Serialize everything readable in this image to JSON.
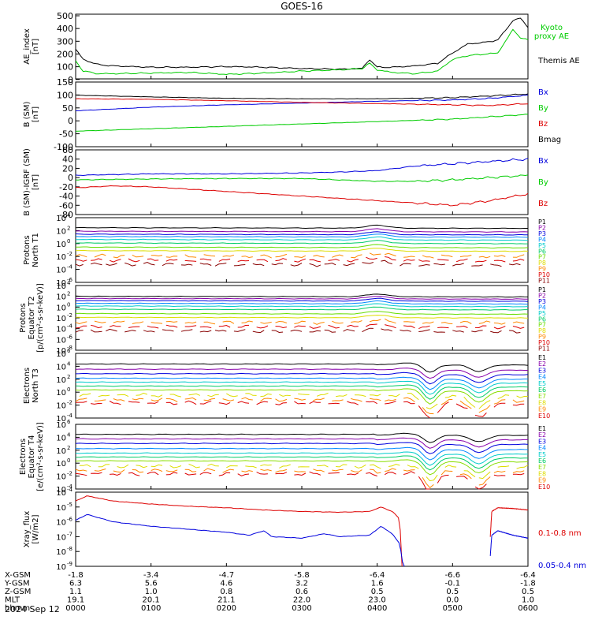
{
  "title": "GOES-16",
  "colors": {
    "black": "#000000",
    "green": "#00cc00",
    "blue": "#0000dd",
    "red": "#dd0000",
    "yellow": "#dddd00",
    "orange": "#ff8800",
    "proton_bands": [
      "#000000",
      "#8800aa",
      "#0000dd",
      "#0088ff",
      "#00cccc",
      "#00cc66",
      "#66dd00",
      "#dddd00",
      "#ff8800",
      "#dd0000",
      "#880000"
    ],
    "electron_bands": [
      "#000000",
      "#8800aa",
      "#0000dd",
      "#0088ff",
      "#00cccc",
      "#00cc66",
      "#88dd00",
      "#dddd00",
      "#ff8800",
      "#dd0000"
    ]
  },
  "chart_data": [
    {
      "id": "ae",
      "type": "line",
      "ylabel": [
        "AE_index",
        "[nT]"
      ],
      "ylim": [
        0,
        500
      ],
      "yticks": [
        "500",
        "400",
        "300",
        "200",
        "100",
        "0"
      ],
      "legend": [
        {
          "text": "Kyoto",
          "color": "#00cc00"
        },
        {
          "text": "proxy AE",
          "color": "#00cc00"
        },
        {
          "text": "Themis AE",
          "color": "#000000"
        }
      ],
      "series": [
        {
          "color": "#000000",
          "x": [
            0,
            0.1,
            0.3,
            0.5,
            1.0,
            1.5,
            2.0,
            2.5,
            3.0,
            3.5,
            3.8,
            3.9,
            4.0,
            4.2,
            4.5,
            4.8,
            5.0,
            5.2,
            5.4,
            5.6,
            5.8,
            5.9,
            6.0
          ],
          "values": [
            230,
            150,
            110,
            100,
            90,
            90,
            95,
            90,
            80,
            75,
            80,
            150,
            90,
            90,
            100,
            120,
            200,
            270,
            280,
            300,
            450,
            470,
            400
          ]
        },
        {
          "color": "#00cc00",
          "x": [
            0,
            0.1,
            0.3,
            0.5,
            1.0,
            1.5,
            2.0,
            2.5,
            3.0,
            3.5,
            3.8,
            3.9,
            4.0,
            4.2,
            4.5,
            4.8,
            5.0,
            5.2,
            5.4,
            5.6,
            5.8,
            5.9,
            6.0
          ],
          "values": [
            140,
            60,
            40,
            40,
            45,
            50,
            35,
            45,
            60,
            70,
            80,
            120,
            70,
            50,
            40,
            60,
            150,
            180,
            190,
            200,
            380,
            320,
            300
          ]
        }
      ]
    },
    {
      "id": "bsm",
      "type": "line",
      "ylabel": [
        "B (SM)",
        "[nT]"
      ],
      "ylim": [
        -120,
        150
      ],
      "yticks": [
        "150",
        "100",
        "50",
        "0",
        "-50",
        "-100"
      ],
      "legend": [
        {
          "text": "Bx",
          "color": "#0000dd"
        },
        {
          "text": "By",
          "color": "#00cc00"
        },
        {
          "text": "Bz",
          "color": "#dd0000"
        },
        {
          "text": "Bmag",
          "color": "#000000"
        }
      ],
      "series": [
        {
          "color": "#000000",
          "x": [
            0,
            1,
            2,
            3,
            4,
            5,
            5.5,
            6
          ],
          "values": [
            95,
            88,
            82,
            80,
            80,
            85,
            92,
            100
          ]
        },
        {
          "color": "#0000dd",
          "x": [
            0,
            1,
            2,
            3,
            4,
            5,
            5.5,
            6
          ],
          "values": [
            30,
            45,
            55,
            62,
            70,
            75,
            82,
            95
          ]
        },
        {
          "color": "#dd0000",
          "x": [
            0,
            1,
            2,
            3,
            4,
            5,
            5.5,
            6
          ],
          "values": [
            80,
            78,
            72,
            65,
            60,
            55,
            52,
            60
          ]
        },
        {
          "color": "#00cc00",
          "x": [
            0,
            1,
            2,
            3,
            4,
            5,
            5.5,
            6
          ],
          "values": [
            -55,
            -45,
            -35,
            -25,
            -15,
            -5,
            5,
            15
          ]
        }
      ]
    },
    {
      "id": "bdiff",
      "type": "line",
      "ylabel": [
        "B (SM)-IGRF (SM)",
        "[nT]"
      ],
      "ylim": [
        -80,
        60
      ],
      "yticks": [
        "60",
        "40",
        "20",
        "0",
        "-20",
        "-40",
        "-60",
        "-80"
      ],
      "legend": [
        {
          "text": "Bx",
          "color": "#0000dd"
        },
        {
          "text": "By",
          "color": "#00cc00"
        },
        {
          "text": "Bz",
          "color": "#dd0000"
        }
      ],
      "series": [
        {
          "color": "#0000dd",
          "x": [
            0,
            1,
            2,
            3,
            3.5,
            4,
            4.5,
            5,
            5.5,
            6
          ],
          "values": [
            5,
            8,
            8,
            10,
            12,
            15,
            25,
            30,
            35,
            40
          ]
        },
        {
          "color": "#00cc00",
          "x": [
            0,
            1,
            2,
            3,
            3.5,
            4,
            4.5,
            5,
            5.5,
            6
          ],
          "values": [
            -5,
            -3,
            -2,
            -2,
            -5,
            -8,
            -8,
            -5,
            0,
            5
          ]
        },
        {
          "color": "#dd0000",
          "x": [
            0,
            0.5,
            1,
            2,
            3,
            3.5,
            4,
            4.5,
            5,
            5.5,
            6
          ],
          "values": [
            -22,
            -18,
            -20,
            -30,
            -40,
            -45,
            -50,
            -55,
            -60,
            -50,
            -35
          ]
        }
      ]
    },
    {
      "id": "pn",
      "type": "line",
      "scale": "log",
      "ylabel": [
        "Protons",
        "North T1"
      ],
      "ylim": [
        -7,
        4
      ],
      "yticks": [
        {
          "base": "10",
          "exp": "4"
        },
        {
          "base": "10",
          "exp": "2"
        },
        {
          "base": "10",
          "exp": "0"
        },
        {
          "base": "10",
          "exp": "-2"
        },
        {
          "base": "10",
          "exp": "-4"
        },
        {
          "base": "10",
          "exp": "-6"
        }
      ],
      "legend": [
        "P1",
        "P2",
        "P3",
        "P4",
        "P5",
        "P6",
        "P7",
        "P8",
        "P9",
        "P10",
        "P11"
      ],
      "levels": [
        2.3,
        1.7,
        1.2,
        0.8,
        0.3,
        -0.3,
        -1.0,
        -1.6,
        -2.5,
        -3.2,
        -3.9
      ]
    },
    {
      "id": "pe",
      "type": "line",
      "scale": "log",
      "ylabel": [
        "Protons",
        "Equator T2",
        "[p/(cm²-s-sr-keV)]"
      ],
      "ylim": [
        -8,
        4
      ],
      "yticks": [
        {
          "base": "10",
          "exp": "4"
        },
        {
          "base": "10",
          "exp": "2"
        },
        {
          "base": "10",
          "exp": "0"
        },
        {
          "base": "10",
          "exp": "-2"
        },
        {
          "base": "10",
          "exp": "-4"
        },
        {
          "base": "10",
          "exp": "-6"
        },
        {
          "base": "10",
          "exp": "-8"
        }
      ],
      "legend": [
        "P1",
        "P2",
        "P3",
        "P4",
        "P5",
        "P6",
        "P7",
        "P8",
        "P9",
        "P10",
        "P11"
      ],
      "levels": [
        2.0,
        1.6,
        1.2,
        0.7,
        0.2,
        -0.4,
        -1.2,
        -1.9,
        -2.8,
        -3.6,
        -4.4
      ]
    },
    {
      "id": "en",
      "type": "line",
      "scale": "log",
      "ylabel": [
        "Electrons",
        "North T3"
      ],
      "ylim": [
        -4,
        6
      ],
      "yticks": [
        {
          "base": "10",
          "exp": "6"
        },
        {
          "base": "10",
          "exp": "4"
        },
        {
          "base": "10",
          "exp": "2"
        },
        {
          "base": "10",
          "exp": "0"
        },
        {
          "base": "10",
          "exp": "-2"
        },
        {
          "base": "10",
          "exp": "-4"
        }
      ],
      "legend": [
        "E1",
        "E2",
        "E3",
        "E4",
        "E5",
        "E6",
        "E7",
        "E8",
        "E9",
        "E10"
      ],
      "levels": [
        4.2,
        3.4,
        2.7,
        2.0,
        1.4,
        0.8,
        0.2,
        -0.6,
        -1.3,
        -1.8
      ]
    },
    {
      "id": "ee",
      "type": "line",
      "scale": "log",
      "ylabel": [
        "Electrons",
        "Equator T4",
        "[e/(cm²-s-sr-keV)]"
      ],
      "ylim": [
        -4,
        6
      ],
      "yticks": [
        {
          "base": "10",
          "exp": "6"
        },
        {
          "base": "10",
          "exp": "4"
        },
        {
          "base": "10",
          "exp": "2"
        },
        {
          "base": "10",
          "exp": "0"
        },
        {
          "base": "10",
          "exp": "-2"
        },
        {
          "base": "10",
          "exp": "-4"
        }
      ],
      "legend": [
        "E1",
        "E2",
        "E3",
        "E4",
        "E5",
        "E6",
        "E7",
        "E8",
        "E9",
        "E10"
      ],
      "levels": [
        4.3,
        3.6,
        2.9,
        2.1,
        1.4,
        0.8,
        0.2,
        -0.6,
        -1.3,
        -1.8
      ]
    },
    {
      "id": "xray",
      "type": "line",
      "scale": "log",
      "ylabel": [
        "Xray_flux",
        "[W/m2]"
      ],
      "ylim": [
        -9,
        -4
      ],
      "yticks": [
        {
          "base": "10",
          "exp": "-4"
        },
        {
          "base": "10",
          "exp": "-5"
        },
        {
          "base": "10",
          "exp": "-6"
        },
        {
          "base": "10",
          "exp": "-7"
        },
        {
          "base": "10",
          "exp": "-8"
        },
        {
          "base": "10",
          "exp": "-9"
        }
      ],
      "legend": [
        {
          "text": "0.1-0.8 nm",
          "color": "#dd0000"
        },
        {
          "text": "0.05-0.4 nm",
          "color": "#0000dd"
        }
      ],
      "series": [
        {
          "color": "#dd0000",
          "x": [
            0,
            0.15,
            0.5,
            1.0,
            1.5,
            2.0,
            2.5,
            3.0,
            3.5,
            3.9,
            4.05,
            4.2,
            4.3,
            4.33
          ],
          "values": [
            -4.6,
            -4.25,
            -4.6,
            -4.8,
            -4.95,
            -5.05,
            -5.2,
            -5.3,
            -5.35,
            -5.3,
            -5.0,
            -5.3,
            -5.8,
            -9.5
          ]
        },
        {
          "color": "#dd0000",
          "x": [
            5.5,
            5.52,
            5.6,
            5.8,
            6.0
          ],
          "values": [
            -7.0,
            -5.3,
            -5.05,
            -5.1,
            -5.2
          ]
        },
        {
          "color": "#0000dd",
          "x": [
            0,
            0.15,
            0.5,
            1.0,
            1.5,
            2.0,
            2.3,
            2.5,
            2.6,
            3.0,
            3.3,
            3.5,
            3.9,
            4.05,
            4.2,
            4.3,
            4.36
          ],
          "values": [
            -5.9,
            -5.5,
            -6.0,
            -6.3,
            -6.5,
            -6.7,
            -6.9,
            -6.6,
            -7.0,
            -7.1,
            -6.8,
            -7.0,
            -6.9,
            -6.3,
            -6.8,
            -7.5,
            -9.5
          ]
        },
        {
          "color": "#0000dd",
          "x": [
            5.5,
            5.52,
            5.6,
            5.8,
            6.0
          ],
          "values": [
            -8.3,
            -6.9,
            -6.6,
            -6.9,
            -7.1
          ]
        }
      ]
    }
  ],
  "xaxis": {
    "rows": [
      {
        "label": "X-GSM",
        "values": [
          "-1.8",
          "-3.4",
          "-4.7",
          "-5.8",
          "-6.4",
          "-6.6",
          "-6.4"
        ]
      },
      {
        "label": "Y-GSM",
        "values": [
          "6.3",
          "5.6",
          "4.6",
          "3.2",
          "1.6",
          "-0.1",
          "-1.8"
        ]
      },
      {
        "label": "Z-GSM",
        "values": [
          "1.1",
          "1.0",
          "0.8",
          "0.6",
          "0.5",
          "0.5",
          "0.5"
        ]
      },
      {
        "label": "MLT",
        "values": [
          "19.1",
          "20.1",
          "21.1",
          "22.0",
          "23.0",
          "0.0",
          "1.0"
        ]
      },
      {
        "label": "hhmm",
        "values": [
          "0000",
          "0100",
          "0200",
          "0300",
          "0400",
          "0500",
          "0600"
        ]
      }
    ],
    "date": "2024 Sep 12"
  }
}
